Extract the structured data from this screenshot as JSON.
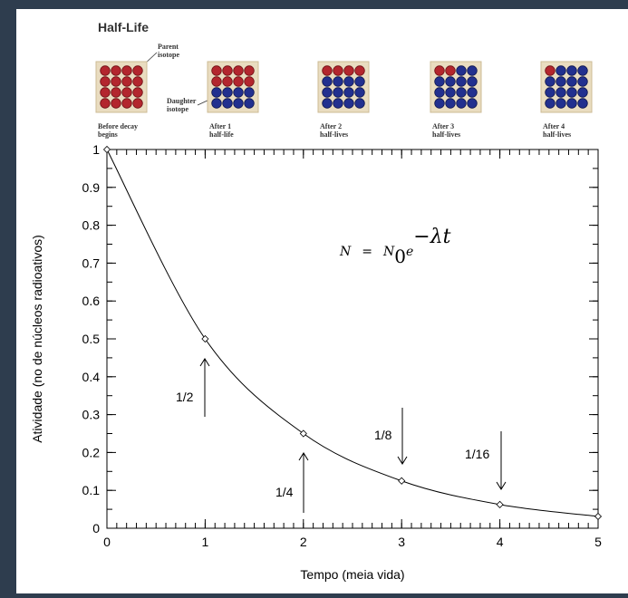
{
  "header": {
    "title": "Half-Life",
    "parent_label": [
      "Parent",
      "isotope"
    ],
    "daughter_label": [
      "Daughter",
      "isotope"
    ],
    "panels": [
      {
        "caption": [
          "Before decay",
          "begins"
        ],
        "parent": 16
      },
      {
        "caption": [
          "After 1",
          "half-life"
        ],
        "parent": 8
      },
      {
        "caption": [
          "After 2",
          "half-lives"
        ],
        "parent": 4
      },
      {
        "caption": [
          "After 3",
          "half-lives"
        ],
        "parent": 2
      },
      {
        "caption": [
          "After 4",
          "half-lives"
        ],
        "parent": 1
      }
    ]
  },
  "chart_data": {
    "type": "line",
    "x_label": "Tempo (meia vida)",
    "y_label": "Atividade  (no de núcleos radioativos)",
    "x": [
      0,
      1,
      2,
      3,
      4,
      5
    ],
    "series": [
      {
        "color": "#000000",
        "values": [
          1,
          0.5,
          0.25,
          0.125,
          0.0625,
          0.03125
        ]
      }
    ],
    "xlim": [
      0,
      5
    ],
    "ylim": [
      0,
      1
    ],
    "xticks": [
      0,
      1,
      2,
      3,
      4,
      5
    ],
    "yticks": [
      0,
      0.1,
      0.2,
      0.3,
      0.4,
      0.5,
      0.6,
      0.7,
      0.8,
      0.9,
      1
    ],
    "x_minor_step": 0.1,
    "y_minor_step": 0.05,
    "annotations": [
      "1/2",
      "1/4",
      "1/8",
      "1/16"
    ],
    "formula": {
      "lhs": "N",
      "eq": "=",
      "base": "N",
      "sub": "0",
      "e": "e",
      "exp": "−λt"
    }
  }
}
